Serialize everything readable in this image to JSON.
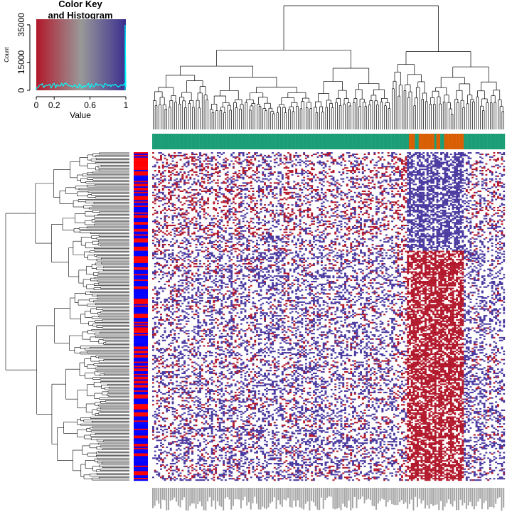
{
  "chart_data": {
    "type": "heatmap",
    "title": "Color Key and Histogram",
    "color_key": {
      "title_lines": [
        "Color Key",
        "and Histogram"
      ],
      "xlabel": "Value",
      "ylabel": "Count",
      "x_ticks": [
        "0",
        "0.2",
        "0.6",
        "1"
      ],
      "x_tick_values": [
        0,
        0.2,
        0.6,
        1
      ],
      "y_ticks": [
        "0",
        "15000",
        "35000"
      ],
      "y_tick_values": [
        0,
        15000,
        35000
      ],
      "ylim": [
        0,
        38000
      ],
      "colors": {
        "low": "#b2182b",
        "mid": "#999999",
        "high": "#3b2f8f"
      },
      "density_color": "#00ffff",
      "histogram_peak_at_1": 35000
    },
    "column_groups": {
      "colors": {
        "main": "#1b9e77",
        "cluster": "#d95f02"
      },
      "orange_block_fraction": [
        0.72,
        0.88
      ]
    },
    "row_side_colors": {
      "a": "#ff0000",
      "b": "#0000ff"
    },
    "heatmap_colors": {
      "high_expression": "#b2182b",
      "low_expression": "#4b3aa0",
      "neutral": "#ffffff"
    }
  }
}
